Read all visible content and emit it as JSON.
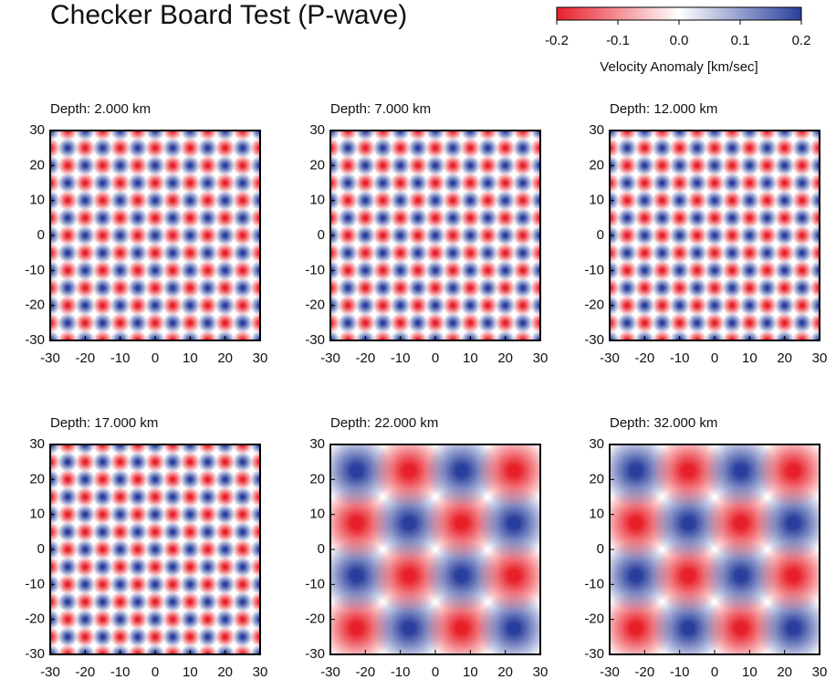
{
  "title": "Checker Board Test (P-wave)",
  "colorbar": {
    "label": "Velocity Anomaly [km/sec]",
    "lim": [
      -0.2,
      0.2
    ],
    "ticks": [
      -0.2,
      -0.1,
      {
        "value": 0,
        "label": "0.0"
      },
      0.1,
      0.2
    ],
    "colors": [
      "#e8202a",
      "#ffffff",
      "#2a3f9d"
    ]
  },
  "chart_data": [
    {
      "type": "heatmap",
      "title": "Depth: 2.000 km",
      "xlim": [
        -30,
        30
      ],
      "ylim": [
        -30,
        30
      ],
      "xticks": [
        -30,
        -20,
        -10,
        0,
        10,
        20,
        30
      ],
      "yticks": [
        -30,
        -20,
        -10,
        0,
        10,
        20,
        30
      ]
    },
    {
      "type": "heatmap",
      "title": "Depth: 7.000 km",
      "xlim": [
        -30,
        30
      ],
      "ylim": [
        -30,
        30
      ],
      "xticks": [
        -30,
        -20,
        -10,
        0,
        10,
        20,
        30
      ],
      "yticks": [
        -30,
        -20,
        -10,
        0,
        10,
        20,
        30
      ]
    },
    {
      "type": "heatmap",
      "title": "Depth: 12.000 km",
      "xlim": [
        -30,
        30
      ],
      "ylim": [
        -30,
        30
      ],
      "xticks": [
        -30,
        -20,
        -10,
        0,
        10,
        20,
        30
      ],
      "yticks": [
        -30,
        -20,
        -10,
        0,
        10,
        20,
        30
      ]
    },
    {
      "type": "heatmap",
      "title": "Depth: 17.000 km",
      "xlim": [
        -30,
        30
      ],
      "ylim": [
        -30,
        30
      ],
      "xticks": [
        -30,
        -20,
        -10,
        0,
        10,
        20,
        30
      ],
      "yticks": [
        -30,
        -20,
        -10,
        0,
        10,
        20,
        30
      ]
    },
    {
      "type": "heatmap",
      "title": "Depth: 22.000 km",
      "xlim": [
        -30,
        30
      ],
      "ylim": [
        -30,
        30
      ],
      "xticks": [
        -30,
        -20,
        -10,
        0,
        10,
        20,
        30
      ],
      "yticks": [
        -30,
        -20,
        -10,
        0,
        10,
        20,
        30
      ]
    },
    {
      "type": "heatmap",
      "title": "Depth: 32.000 km",
      "xlim": [
        -30,
        30
      ],
      "ylim": [
        -30,
        30
      ],
      "xticks": [
        -30,
        -20,
        -10,
        0,
        10,
        20,
        30
      ],
      "yticks": [
        -30,
        -20,
        -10,
        0,
        10,
        20,
        30
      ]
    }
  ]
}
